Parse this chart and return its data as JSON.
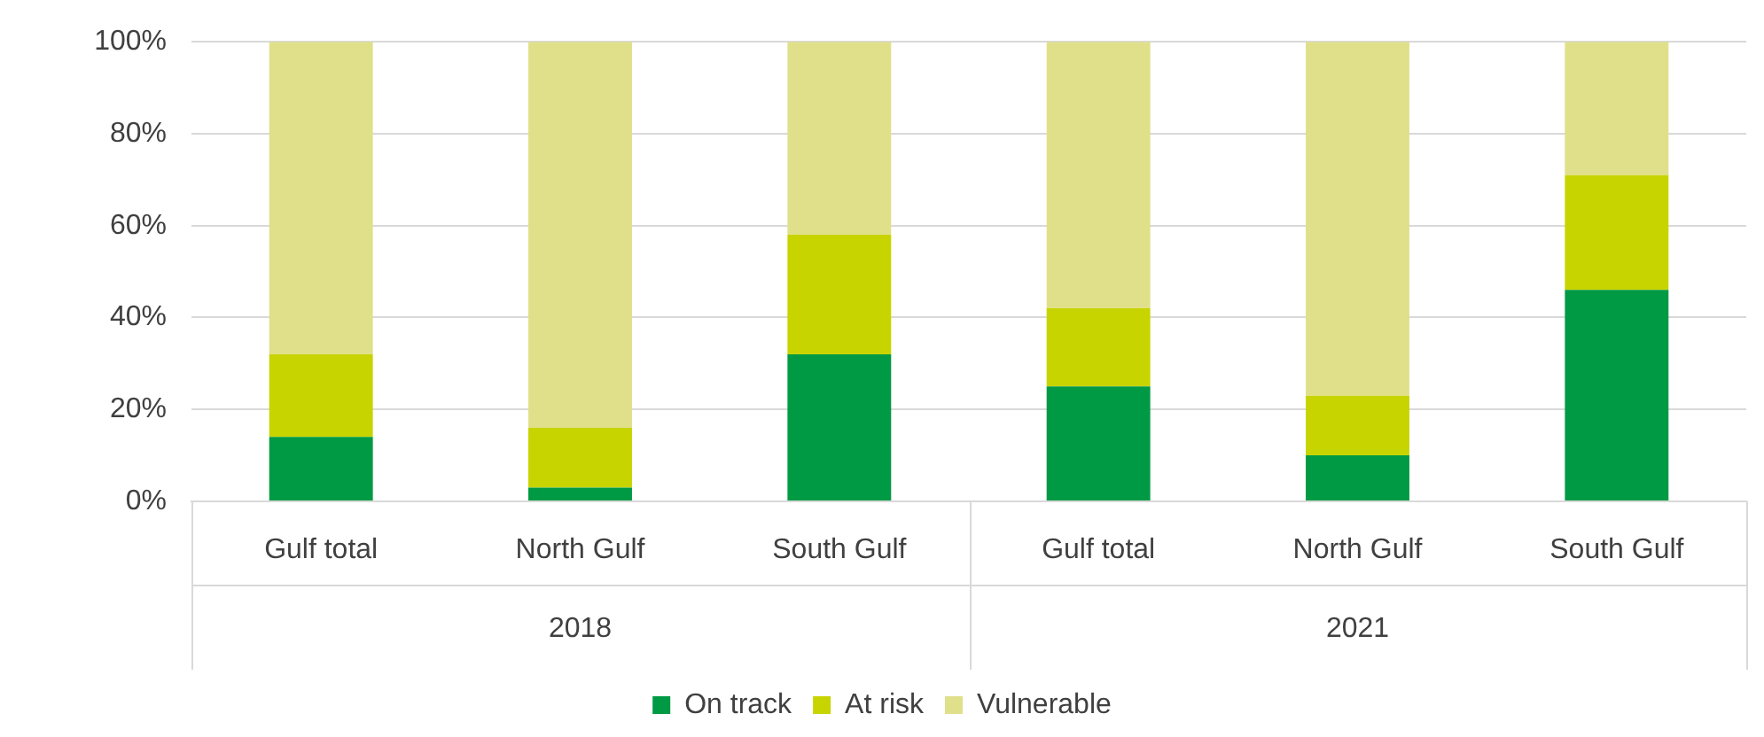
{
  "chart_data": {
    "type": "bar",
    "stacked": true,
    "categories": [
      "Gulf total",
      "North Gulf",
      "South Gulf",
      "Gulf total",
      "North Gulf",
      "South Gulf"
    ],
    "series": [
      {
        "name": "On track",
        "color": "#009a44",
        "values": [
          14,
          3,
          32,
          25,
          10,
          46
        ]
      },
      {
        "name": "At risk",
        "color": "#c8d400",
        "values": [
          18,
          13,
          26,
          17,
          13,
          25
        ]
      },
      {
        "name": "Vulnerable",
        "color": "#e0e08a",
        "values": [
          68,
          84,
          42,
          58,
          77,
          29
        ]
      }
    ],
    "ylim": [
      0,
      100
    ],
    "yticks": [
      {
        "value": 0,
        "label": "0%"
      },
      {
        "value": 20,
        "label": "20%"
      },
      {
        "value": 40,
        "label": "40%"
      },
      {
        "value": 60,
        "label": "60%"
      },
      {
        "value": 80,
        "label": "80%"
      },
      {
        "value": 100,
        "label": "100%"
      }
    ],
    "grid": "y",
    "legend": "bottom",
    "annotations": [
      "2018",
      "2021"
    ]
  }
}
